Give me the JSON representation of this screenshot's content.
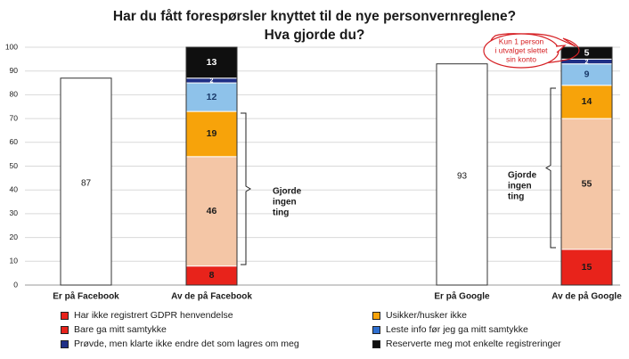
{
  "chart_data": {
    "type": "bar",
    "title_line1": "Har du fått forespørsler knyttet til de nye personvernreglene?",
    "title_line2": "Hva gjorde du?",
    "ylim": [
      0,
      100
    ],
    "yticks": [
      "0",
      "10",
      "20",
      "30",
      "40",
      "50",
      "60",
      "70",
      "80",
      "90",
      "100"
    ],
    "categories": [
      "Er på Facebook",
      "Av de på Facebook",
      "Er på Google",
      "Av de på Google"
    ],
    "simple_bars": [
      {
        "category": "Er på Facebook",
        "value": 87,
        "label": "87"
      },
      {
        "category": "Er på Google",
        "value": 93,
        "label": "93"
      }
    ],
    "series": [
      {
        "name": "Har ikke registrert GDPR henvendelse",
        "color": "#e8231b",
        "values": [
          null,
          8,
          null,
          15
        ]
      },
      {
        "name": "Usikker/husker ikke",
        "color": "#f4c6a6",
        "values": [
          null,
          46,
          null,
          55
        ]
      },
      {
        "name": "Bare ga mitt samtykke",
        "color": "#f7a30a",
        "values": [
          null,
          19,
          null,
          14
        ]
      },
      {
        "name": "Leste info før jeg ga mitt samtykke",
        "color": "#8ec2ea",
        "values": [
          null,
          12,
          null,
          9
        ]
      },
      {
        "name": "Prøvde, men klarte ikke endre det som lagres om meg",
        "color": "#1f2f86",
        "values": [
          null,
          2,
          null,
          2
        ]
      },
      {
        "name": "Reserverte meg mot enkelte registreringer",
        "color": "#0f0f0f",
        "values": [
          null,
          13,
          null,
          5
        ]
      }
    ],
    "data_labels": {
      "Av de på Facebook": [
        "8",
        "46",
        "19",
        "12",
        "2",
        "13"
      ],
      "Av de på Google": [
        "15",
        "55",
        "14",
        "9",
        "2",
        "5"
      ]
    },
    "annotations": {
      "bracket_facebook": [
        "Gjorde",
        "ingen",
        "ting"
      ],
      "bracket_google": [
        "Gjorde",
        "ingen",
        "ting"
      ],
      "callout": [
        "Kun 1 person",
        "i utvalget slettet",
        "sin konto"
      ]
    },
    "legend_items": [
      {
        "label": "Har ikke registrert GDPR henvendelse",
        "color": "#e8231b"
      },
      {
        "label": "Usikker/husker ikke",
        "color": "#f7a30a"
      },
      {
        "label": "Bare ga mitt samtykke",
        "color": "#e8231b"
      },
      {
        "label": "Leste info før jeg ga mitt samtykke",
        "color": "#2f6fd0"
      },
      {
        "label": "Prøvde, men klarte ikke endre det som lagres om meg",
        "color": "#1f2f86"
      },
      {
        "label": "Reserverte meg mot enkelte registreringer",
        "color": "#0f0f0f"
      }
    ],
    "grid": true,
    "legend_position": "bottom"
  }
}
